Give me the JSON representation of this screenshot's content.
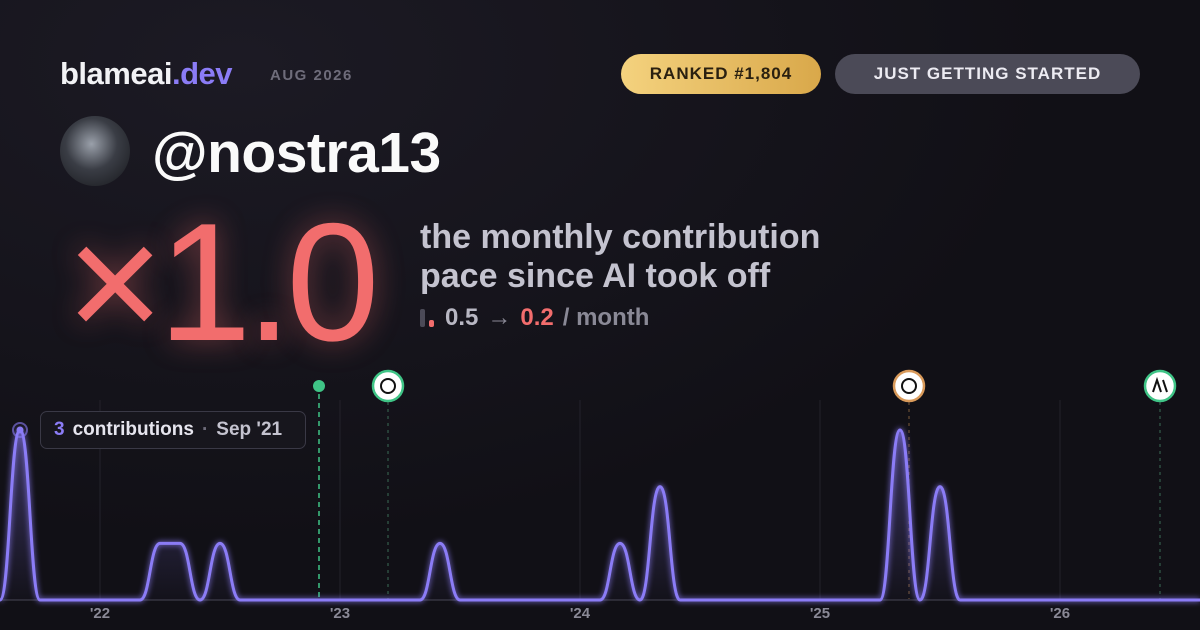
{
  "brand": {
    "name": "blameai",
    "tld": ".dev",
    "date": "AUG 2026"
  },
  "badges": {
    "rank": "RANKED #1,804",
    "status": "JUST GETTING STARTED"
  },
  "user": {
    "handle": "@nostra13"
  },
  "multiplier": "×1.0",
  "description": "the monthly contribution pace since AI took off",
  "pace": {
    "before": 0.5,
    "arrow": "→",
    "after": 0.2,
    "unit": "/ month"
  },
  "tooltip": {
    "label": "contributions",
    "separator": "·",
    "month": "Sep '21"
  },
  "chart_data": {
    "type": "line",
    "categories": [
      null,
      null,
      null,
      null,
      null,
      "'22",
      null,
      null,
      null,
      null,
      null,
      null,
      null,
      null,
      null,
      null,
      null,
      "'23",
      null,
      null,
      null,
      null,
      null,
      null,
      null,
      null,
      null,
      null,
      null,
      "'24",
      null,
      null,
      null,
      null,
      null,
      null,
      null,
      null,
      null,
      null,
      null,
      "'25",
      null,
      null,
      null,
      null,
      null,
      null,
      null,
      null,
      null,
      null,
      null,
      "'26",
      null,
      null,
      null,
      null,
      null,
      null,
      null
    ],
    "values": [
      0,
      3,
      0,
      0,
      0,
      0,
      0,
      0,
      1,
      1,
      0,
      1,
      0,
      0,
      0,
      0,
      0,
      0,
      0,
      0,
      0,
      0,
      1,
      0,
      0,
      0,
      0,
      0,
      0,
      0,
      0,
      1,
      0,
      2,
      0,
      0,
      0,
      0,
      0,
      0,
      0,
      0,
      0,
      0,
      0,
      3,
      0,
      2,
      0,
      0,
      0,
      0,
      0,
      0,
      0,
      0,
      0,
      0,
      0,
      0,
      0
    ],
    "color": "#8b7cf6",
    "ylim": [
      0,
      3
    ]
  }
}
